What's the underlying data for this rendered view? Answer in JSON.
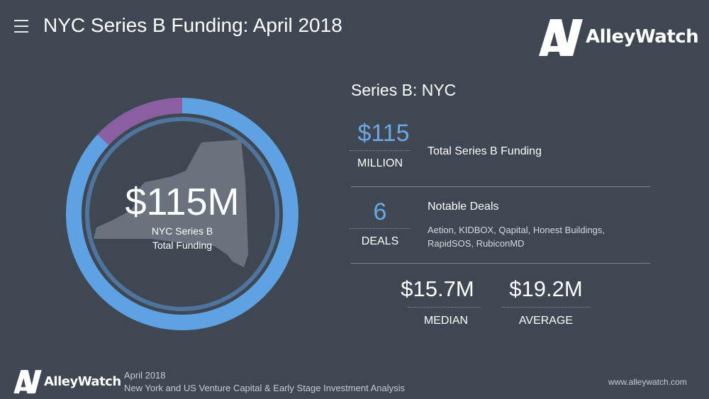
{
  "header": {
    "title": "NYC Series B Funding: April 2018",
    "brand": "AlleyWatch"
  },
  "donut": {
    "center_value": "$115M",
    "center_label_line1": "NYC Series B",
    "center_label_line2": "Total Funding",
    "segments": [
      {
        "fraction": 0.87,
        "color": "#5ea2e3"
      },
      {
        "fraction": 0.13,
        "color": "#8a5ea1"
      }
    ],
    "state_color": "#6b7580",
    "inner_ring_color": "#5583b8"
  },
  "summary": {
    "title": "Series B: NYC",
    "total": {
      "value": "$115",
      "unit": "MILLION",
      "label": "Total Series B Funding"
    },
    "deals": {
      "value": "6",
      "unit": "DEALS",
      "title": "Notable Deals",
      "list_line1": "Aetion, KIDBOX, Qapital, Honest Buildings,",
      "list_line2": "RapidSOS, RubiconMD"
    },
    "median": {
      "value": "$15.7M",
      "unit": "MEDIAN"
    },
    "average": {
      "value": "$19.2M",
      "unit": "AVERAGE"
    }
  },
  "footer": {
    "brand": "AlleyWatch",
    "date": "April 2018",
    "subtitle": "New York and US Venture Capital & Early Stage Investment Analysis",
    "url": "www.alleywatch.com"
  }
}
